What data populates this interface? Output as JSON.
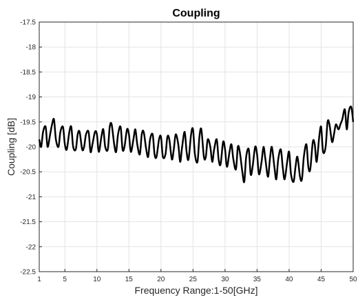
{
  "chart_data": {
    "type": "line",
    "title": "Coupling",
    "xlabel": "Frequency Range:1-50[GHz]",
    "ylabel": "Coupling [dB]",
    "xlim": [
      1,
      50
    ],
    "ylim": [
      -22.5,
      -17.5
    ],
    "xticks": [
      1,
      5,
      10,
      15,
      20,
      25,
      30,
      35,
      40,
      45,
      50
    ],
    "xtick_labels": [
      "1",
      "5",
      "10",
      "15",
      "20",
      "25",
      "30",
      "35",
      "40",
      "45",
      "50"
    ],
    "yticks": [
      -17.5,
      -18,
      -18.5,
      -19,
      -19.5,
      -20,
      -20.5,
      -21,
      -21.5,
      -22,
      -22.5
    ],
    "ytick_labels": [
      "-17.5",
      "-18",
      "-18.5",
      "-19",
      "-19.5",
      "-20",
      "-20.5",
      "-21",
      "-21.5",
      "-22",
      "-22.5"
    ],
    "grid": true,
    "line_color": "#000000",
    "series": [
      {
        "x": [
          1.0,
          1.3,
          1.6,
          2.0,
          2.3,
          2.7,
          3.0,
          3.3,
          3.6,
          4.0,
          4.3,
          4.7,
          5.0,
          5.3,
          5.7,
          6.0,
          6.3,
          6.7,
          7.0,
          7.3,
          7.7,
          8.0,
          8.3,
          8.7,
          9.0,
          9.3,
          9.7,
          10.0,
          10.3,
          10.7,
          11.0,
          11.3,
          11.7,
          12.0,
          12.3,
          12.7,
          13.0,
          13.3,
          13.7,
          14.0,
          14.3,
          14.7,
          15.0,
          15.3,
          15.7,
          16.0,
          16.3,
          16.7,
          17.0,
          17.3,
          17.7,
          18.0,
          18.3,
          18.7,
          19.0,
          19.3,
          19.7,
          20.0,
          20.3,
          20.7,
          21.0,
          21.3,
          21.7,
          22.0,
          22.3,
          22.7,
          23.0,
          23.3,
          23.7,
          24.0,
          24.3,
          24.7,
          25.0,
          25.3,
          25.7,
          26.0,
          26.3,
          26.7,
          27.0,
          27.3,
          27.7,
          28.0,
          28.3,
          28.7,
          29.0,
          29.3,
          29.7,
          30.0,
          30.3,
          30.7,
          31.0,
          31.3,
          31.7,
          32.0,
          32.3,
          32.7,
          33.0,
          33.3,
          33.7,
          34.0,
          34.3,
          34.7,
          35.0,
          35.3,
          35.7,
          36.0,
          36.3,
          36.7,
          37.0,
          37.3,
          37.7,
          38.0,
          38.3,
          38.7,
          39.0,
          39.3,
          39.7,
          40.0,
          40.3,
          40.7,
          41.0,
          41.3,
          41.7,
          42.0,
          42.3,
          42.7,
          43.0,
          43.3,
          43.7,
          44.0,
          44.3,
          44.7,
          45.0,
          45.3,
          45.7,
          46.0,
          46.3,
          46.7,
          47.0,
          47.3,
          47.7,
          48.0,
          48.3,
          48.7,
          49.0,
          49.3,
          49.7,
          50.0
        ],
        "y": [
          -19.85,
          -20.0,
          -19.7,
          -19.6,
          -20.0,
          -19.75,
          -19.55,
          -19.45,
          -19.85,
          -20.0,
          -19.7,
          -19.6,
          -19.95,
          -20.05,
          -19.7,
          -19.6,
          -20.0,
          -20.05,
          -19.75,
          -19.7,
          -20.05,
          -20.0,
          -19.75,
          -19.7,
          -20.1,
          -19.95,
          -19.7,
          -19.75,
          -20.1,
          -19.8,
          -19.65,
          -20.0,
          -20.05,
          -19.6,
          -19.55,
          -19.95,
          -20.1,
          -19.75,
          -19.6,
          -20.05,
          -20.0,
          -19.65,
          -19.75,
          -20.1,
          -19.85,
          -19.65,
          -19.95,
          -20.15,
          -19.75,
          -19.7,
          -20.05,
          -20.2,
          -19.85,
          -19.75,
          -20.15,
          -20.2,
          -19.85,
          -19.8,
          -20.2,
          -20.15,
          -19.8,
          -19.85,
          -20.25,
          -20.05,
          -19.75,
          -19.95,
          -20.3,
          -20.0,
          -19.7,
          -20.1,
          -20.25,
          -19.75,
          -19.65,
          -20.15,
          -20.3,
          -19.8,
          -19.65,
          -20.2,
          -20.2,
          -19.85,
          -20.0,
          -20.3,
          -20.05,
          -19.85,
          -20.25,
          -20.35,
          -19.9,
          -20.05,
          -20.4,
          -20.1,
          -19.95,
          -20.25,
          -20.45,
          -20.0,
          -20.1,
          -20.5,
          -20.7,
          -20.2,
          -20.05,
          -20.55,
          -20.4,
          -20.0,
          -20.15,
          -20.55,
          -20.3,
          -20.0,
          -20.25,
          -20.6,
          -20.25,
          -20.0,
          -20.4,
          -20.65,
          -20.25,
          -20.05,
          -20.4,
          -20.65,
          -20.3,
          -20.1,
          -20.55,
          -20.7,
          -20.4,
          -20.2,
          -20.6,
          -20.65,
          -20.2,
          -19.95,
          -20.4,
          -20.45,
          -19.9,
          -19.95,
          -20.3,
          -19.8,
          -19.6,
          -20.1,
          -20.0,
          -19.5,
          -19.55,
          -19.9,
          -19.75,
          -19.55,
          -19.65,
          -19.55,
          -19.45,
          -19.25,
          -19.65,
          -19.3,
          -19.2,
          -19.5
        ]
      }
    ]
  }
}
